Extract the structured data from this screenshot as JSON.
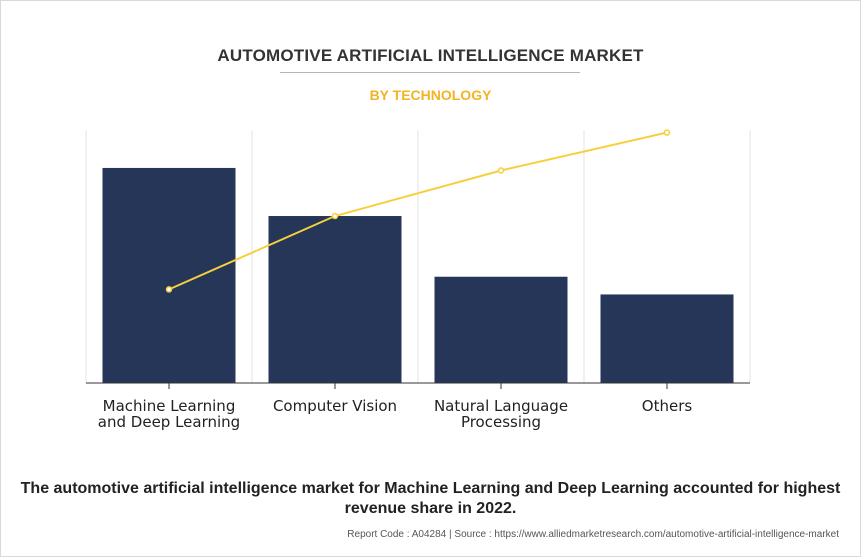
{
  "chart_data": {
    "type": "bar",
    "title": "AUTOMOTIVE ARTIFICIAL INTELLIGENCE MARKET",
    "subtitle": "BY TECHNOLOGY",
    "categories": [
      [
        "Machine Learning",
        "and Deep Learning"
      ],
      [
        "Computer Vision"
      ],
      [
        "Natural Language",
        "Processing"
      ],
      [
        "Others"
      ]
    ],
    "series": [
      {
        "type": "bar",
        "values": [
          85,
          66,
          42,
          35
        ]
      },
      {
        "type": "line",
        "values": [
          37,
          66,
          84,
          99
        ]
      }
    ],
    "ylim": [
      0,
      100
    ],
    "grid": "vertical",
    "legend": "none",
    "colors": {
      "bar": "#253659",
      "line": "#f6cf3b",
      "subtitle": "#f4b325",
      "axis": "#333333",
      "grid": "#e3e3e3"
    }
  },
  "caption": "The automotive artificial intelligence market for Machine Learning and Deep Learning accounted for highest revenue share in 2022.",
  "footer": "Report Code : A04284  |  Source : https://www.alliedmarketresearch.com/automotive-artificial-intelligence-market"
}
